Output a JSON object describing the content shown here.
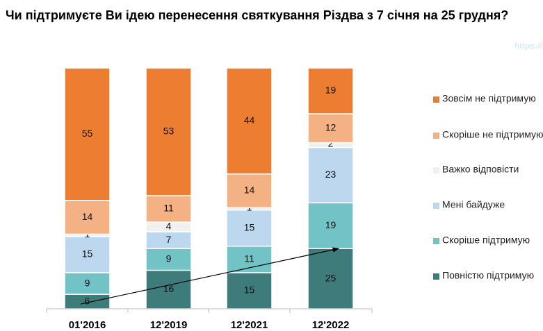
{
  "chart_data": {
    "type": "bar",
    "stacked": true,
    "title": "Чи підтримуєте Ви ідею перенесення святкування Різдва з 7 січня на 25 грудня?",
    "watermark": "https://",
    "categories": [
      "01'2016",
      "12'2019",
      "12'2021",
      "12'2022"
    ],
    "ylim": [
      0,
      100
    ],
    "grid": false,
    "legend_position": "right",
    "series": [
      {
        "name": "Повністю підтримую",
        "color": "#3E7B7B",
        "values": [
          6,
          16,
          15,
          25
        ]
      },
      {
        "name": "Скоріше  підтримую",
        "color": "#72C3C5",
        "values": [
          9,
          9,
          11,
          19
        ]
      },
      {
        "name": "Мені байдуже",
        "color": "#BDD7EE",
        "values": [
          15,
          7,
          15,
          23
        ]
      },
      {
        "name": "Важко відповісти",
        "color": "#F0F0F0",
        "values": [
          1,
          4,
          1,
          2
        ]
      },
      {
        "name": "Скоріше  не підтримую",
        "color": "#F4B183",
        "values": [
          14,
          11,
          14,
          12
        ]
      },
      {
        "name": "Зовсім не підтримую",
        "color": "#ED7D31",
        "values": [
          55,
          53,
          44,
          19
        ]
      }
    ],
    "annotations": [
      {
        "type": "trend-arrow",
        "series": "Повністю підтримую",
        "from": "01'2016",
        "to": "12'2022"
      }
    ]
  }
}
